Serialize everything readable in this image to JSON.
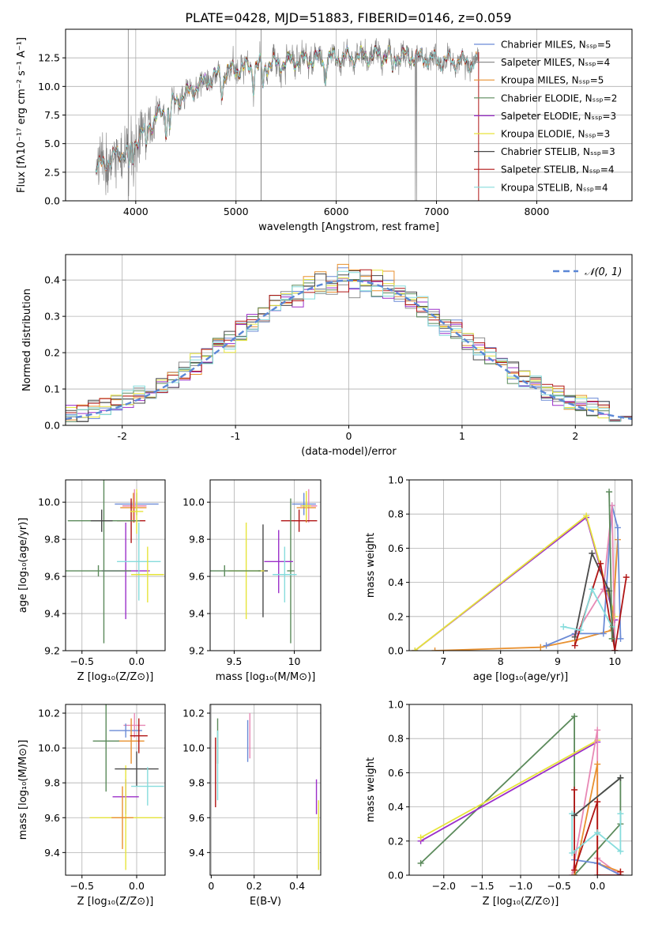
{
  "page_title": "PLATE=0428, MJD=51883, FIBERID=0146, z=0.059",
  "model_colors": [
    "#6b8bd6",
    "#8e8e8e",
    "#e8902f",
    "#5b8a5b",
    "#9b2fc9",
    "#e6e43a",
    "#4a4a4a",
    "#b01515",
    "#86dcdc"
  ],
  "chart_data": [
    {
      "id": "spectrum",
      "type": "line",
      "title": "PLATE=0428, MJD=51883, FIBERID=0146, z=0.059",
      "xlabel": "wavelength [Angstrom, rest frame]",
      "ylabel": "Flux [fλ10⁻¹⁷ erg cm⁻² s⁻¹ A⁻¹]",
      "xlim": [
        3300,
        8950
      ],
      "ylim": [
        0,
        15
      ],
      "xticks": [
        4000,
        5000,
        6000,
        7000,
        8000
      ],
      "yticks": [
        0.0,
        2.5,
        5.0,
        7.5,
        10.0,
        12.5
      ],
      "grid": true,
      "legend_position": "upper-right",
      "continuum": {
        "x": [
          3600,
          3700,
          3800,
          3900,
          4000,
          4100,
          4200,
          4300,
          4400,
          4500,
          4600,
          4700,
          4800,
          4900,
          5000,
          5200,
          5400,
          5600,
          5800,
          6000,
          6200,
          6400,
          6600,
          6800,
          7000,
          7200,
          7400
        ],
        "y": [
          2.8,
          3.3,
          4.0,
          4.3,
          5.3,
          6.3,
          7.2,
          8.0,
          8.7,
          9.3,
          9.9,
          10.4,
          10.9,
          11.3,
          11.5,
          11.8,
          12.0,
          12.2,
          12.4,
          12.5,
          12.6,
          12.7,
          12.7,
          12.6,
          12.3,
          12.2,
          12.1
        ]
      },
      "series": [
        {
          "name": "Chabrier MILES, Nₛₛₚ=5",
          "range": [
            3600,
            7400
          ]
        },
        {
          "name": "Salpeter MILES, Nₛₛₚ=4",
          "range": [
            3600,
            7400
          ]
        },
        {
          "name": "Kroupa MILES, Nₛₛₚ=5",
          "range": [
            3600,
            7400
          ]
        },
        {
          "name": "Chabrier ELODIE, Nₛₛₚ=2",
          "range": [
            3900,
            6800
          ]
        },
        {
          "name": "Salpeter ELODIE, Nₛₛₚ=3",
          "range": [
            3900,
            6800
          ]
        },
        {
          "name": "Kroupa ELODIE, Nₛₛₚ=3",
          "range": [
            3900,
            6800
          ]
        },
        {
          "name": "Chabrier STELIB, Nₛₛₚ=3",
          "range": [
            3600,
            7400
          ]
        },
        {
          "name": "Salpeter STELIB, Nₛₛₚ=4",
          "range": [
            3600,
            7400
          ]
        },
        {
          "name": "Kroupa STELIB, Nₛₛₚ=4",
          "range": [
            3600,
            7400
          ]
        }
      ]
    },
    {
      "id": "residuals",
      "type": "histogram",
      "xlabel": "(data-model)/error",
      "ylabel": "Normed distribution",
      "xlim": [
        -2.5,
        2.5
      ],
      "ylim": [
        0,
        0.47
      ],
      "xticks": [
        -2,
        -1,
        0,
        1,
        2
      ],
      "yticks": [
        0.0,
        0.1,
        0.2,
        0.3,
        0.4
      ],
      "grid": true,
      "legend_position": "upper-right",
      "legend": "𝒩(0, 1)",
      "reference_curve": {
        "mean": 0,
        "sigma": 1
      },
      "bin_width": 0.1
    },
    {
      "id": "age_vs_Z",
      "type": "errorbar",
      "xlabel": "Z [log₁₀(Z/Z⊙)]",
      "ylabel": "age  [log₁₀(age/yr)]",
      "xlim": [
        -0.65,
        0.26
      ],
      "ylim": [
        9.2,
        10.12
      ],
      "xticks": [
        -0.5,
        0.0
      ],
      "xticklabels": [
        "−0.5",
        "0.0"
      ],
      "yticks": [
        9.2,
        9.4,
        9.6,
        9.8,
        10.0
      ],
      "grid": true,
      "points": [
        {
          "x": 0.0,
          "y": 9.99,
          "xerr": 0.2,
          "yerr": 0.06
        },
        {
          "x": -0.02,
          "y": 9.98,
          "xerr": 0.11,
          "yerr": 0.09
        },
        {
          "x": -0.03,
          "y": 9.97,
          "xerr": 0.12,
          "yerr": 0.08
        },
        {
          "x": -0.05,
          "y": 9.9,
          "xerr": 0.13,
          "yerr": 0.12
        },
        {
          "x": -0.3,
          "y": 9.9,
          "xerr": 0.33,
          "yerr": 0.66
        },
        {
          "x": -0.32,
          "y": 9.9,
          "xerr": 0.1,
          "yerr": 0.06
        },
        {
          "x": -0.1,
          "y": 9.63,
          "xerr": 0.22,
          "yerr": 0.26
        },
        {
          "x": 0.02,
          "y": 9.68,
          "xerr": 0.2,
          "yerr": 0.21
        },
        {
          "x": 0.1,
          "y": 9.61,
          "xerr": 0.15,
          "yerr": 0.15
        },
        {
          "x": -0.35,
          "y": 9.63,
          "xerr": 0.3,
          "yerr": 0.03
        },
        {
          "x": 0.0,
          "y": 9.95,
          "xerr": 0.06,
          "yerr": 0.12
        }
      ]
    },
    {
      "id": "age_vs_mass",
      "type": "errorbar",
      "xlabel": "mass [log₁₀(M/M⊙)]",
      "ylabel": "",
      "xlim": [
        9.3,
        10.22
      ],
      "ylim": [
        9.2,
        10.12
      ],
      "xticks": [
        9.5,
        10.0
      ],
      "yticks": [
        9.2,
        9.4,
        9.6,
        9.8,
        10.0
      ],
      "grid": true,
      "points": [
        {
          "x": 10.08,
          "y": 9.99,
          "xerr": 0.1,
          "yerr": 0.06
        },
        {
          "x": 10.12,
          "y": 9.98,
          "xerr": 0.07,
          "yerr": 0.09
        },
        {
          "x": 10.1,
          "y": 9.97,
          "xerr": 0.08,
          "yerr": 0.08
        },
        {
          "x": 10.04,
          "y": 9.9,
          "xerr": 0.15,
          "yerr": 0.06
        },
        {
          "x": 9.97,
          "y": 9.63,
          "xerr": 0.03,
          "yerr": 0.39
        },
        {
          "x": 9.74,
          "y": 9.63,
          "xerr": 0.04,
          "yerr": 0.25
        },
        {
          "x": 9.87,
          "y": 9.68,
          "xerr": 0.12,
          "yerr": 0.17
        },
        {
          "x": 9.92,
          "y": 9.61,
          "xerr": 0.1,
          "yerr": 0.15
        },
        {
          "x": 9.6,
          "y": 9.63,
          "xerr": 0.15,
          "yerr": 0.26
        },
        {
          "x": 9.42,
          "y": 9.63,
          "xerr": 0.3,
          "yerr": 0.03
        },
        {
          "x": 10.1,
          "y": 9.98,
          "xerr": 0.04,
          "yerr": 0.08
        }
      ]
    },
    {
      "id": "weight_vs_age",
      "type": "line",
      "xlabel": "age  [log₁₀(age/yr)]",
      "ylabel": "mass weight",
      "xlim": [
        6.4,
        10.3
      ],
      "ylim": [
        0,
        1
      ],
      "xticks": [
        7,
        8,
        9,
        10
      ],
      "yticks": [
        0.0,
        0.2,
        0.4,
        0.6,
        0.8,
        1.0
      ],
      "grid": true,
      "series": [
        {
          "x": [
            6.5,
            9.5,
            10.0
          ],
          "y": [
            0.0,
            0.78,
            0.18
          ],
          "color": "#9b2fc9"
        },
        {
          "x": [
            6.5,
            9.5,
            10.0
          ],
          "y": [
            0.0,
            0.79,
            0.2
          ],
          "color": "#e6e43a"
        },
        {
          "x": [
            6.85,
            8.7,
            9.3,
            9.95,
            10.05
          ],
          "y": [
            0.0,
            0.02,
            0.06,
            0.12,
            0.65
          ],
          "color": "#e8902f"
        },
        {
          "x": [
            8.8,
            9.3,
            9.8,
            9.95,
            10.05,
            10.1
          ],
          "y": [
            0.03,
            0.1,
            0.1,
            0.85,
            0.72,
            0.07
          ],
          "color": "#6b8bd6"
        },
        {
          "x": [
            9.3,
            9.8,
            9.95,
            10.0
          ],
          "y": [
            0.09,
            0.36,
            0.85,
            0.0
          ],
          "color": "#e889b5"
        },
        {
          "x": [
            9.3,
            9.6,
            9.9,
            10.0
          ],
          "y": [
            0.08,
            0.57,
            0.35,
            0.0
          ],
          "color": "#4a4a4a"
        },
        {
          "x": [
            9.3,
            9.75,
            10.0,
            10.2
          ],
          "y": [
            0.03,
            0.51,
            0.0,
            0.43
          ],
          "color": "#b01515"
        },
        {
          "x": [
            9.1,
            9.4,
            9.6,
            9.95
          ],
          "y": [
            0.14,
            0.12,
            0.36,
            0.14
          ],
          "color": "#86dcdc"
        },
        {
          "x": [
            9.9,
            9.95
          ],
          "y": [
            0.93,
            0.07
          ],
          "color": "#5b8a5b"
        }
      ]
    },
    {
      "id": "mass_vs_Z",
      "type": "errorbar",
      "xlabel": "Z [log₁₀(Z/Z⊙)]",
      "ylabel": "mass [log₁₀(M/M⊙)]",
      "xlim": [
        -0.65,
        0.26
      ],
      "ylim": [
        9.27,
        10.25
      ],
      "xticks": [
        -0.5,
        0.0
      ],
      "xticklabels": [
        "−0.5",
        "0.0"
      ],
      "yticks": [
        9.4,
        9.6,
        9.8,
        10.0,
        10.2
      ],
      "grid": true,
      "points": [
        {
          "x": -0.02,
          "y": 10.13,
          "xerr": 0.1,
          "yerr": 0.07
        },
        {
          "x": -0.1,
          "y": 10.1,
          "xerr": 0.15,
          "yerr": 0.04
        },
        {
          "x": -0.05,
          "y": 10.04,
          "xerr": 0.12,
          "yerr": 0.13
        },
        {
          "x": -0.28,
          "y": 10.04,
          "xerr": 0.12,
          "yerr": 0.29
        },
        {
          "x": -0.1,
          "y": 9.72,
          "xerr": 0.12,
          "yerr": 0.1
        },
        {
          "x": -0.1,
          "y": 9.6,
          "xerr": 0.33,
          "yerr": 0.3
        },
        {
          "x": -0.13,
          "y": 9.6,
          "xerr": 0.1,
          "yerr": 0.18
        },
        {
          "x": 0.0,
          "y": 9.88,
          "xerr": 0.2,
          "yerr": 0.1
        },
        {
          "x": 0.1,
          "y": 9.78,
          "xerr": 0.15,
          "yerr": 0.11
        },
        {
          "x": 0.02,
          "y": 10.07,
          "xerr": 0.08,
          "yerr": 0.1
        }
      ]
    },
    {
      "id": "mass_vs_EBV",
      "type": "errorbar",
      "xlabel": "E(B-V)",
      "ylabel": "",
      "xlim": [
        -0.005,
        0.51
      ],
      "ylim": [
        9.27,
        10.25
      ],
      "xticks": [
        0.0,
        0.2,
        0.4
      ],
      "yticks": [
        9.4,
        9.6,
        9.8,
        10.0,
        10.2
      ],
      "grid": true,
      "points": [
        {
          "x": 0.03,
          "y": 10.04,
          "xerr": 0,
          "yerr": 0.13
        },
        {
          "x": 0.03,
          "y": 9.9,
          "xerr": 0,
          "yerr": 0.2
        },
        {
          "x": 0.02,
          "y": 9.86,
          "xerr": 0,
          "yerr": 0.2
        },
        {
          "x": 0.17,
          "y": 10.04,
          "xerr": 0,
          "yerr": 0.12
        },
        {
          "x": 0.18,
          "y": 10.07,
          "xerr": 0,
          "yerr": 0.13
        },
        {
          "x": 0.49,
          "y": 9.72,
          "xerr": 0,
          "yerr": 0.1
        },
        {
          "x": 0.5,
          "y": 9.5,
          "xerr": 0,
          "yerr": 0.2
        }
      ]
    },
    {
      "id": "weight_vs_Z",
      "type": "line",
      "xlabel": "Z [log₁₀(Z/Z⊙)]",
      "ylabel": "mass weight",
      "xlim": [
        -2.45,
        0.45
      ],
      "ylim": [
        0,
        1
      ],
      "xticks": [
        -2.0,
        -1.5,
        -1.0,
        -0.5,
        0.0
      ],
      "xticklabels": [
        "−2.0",
        "−1.5",
        "−1.0",
        "−0.5",
        "0.0"
      ],
      "yticks": [
        0.0,
        0.2,
        0.4,
        0.6,
        0.8,
        1.0
      ],
      "grid": true,
      "series": [
        {
          "x": [
            -2.3,
            -0.3,
            -0.3,
            0.3,
            0.3,
            -0.3
          ],
          "y": [
            0.07,
            0.93,
            0.35,
            0.57,
            0.3,
            0.0
          ],
          "color": "#5b8a5b"
        },
        {
          "x": [
            -2.3,
            0.0
          ],
          "y": [
            0.2,
            0.78
          ],
          "color": "#9b2fc9"
        },
        {
          "x": [
            -2.3,
            0.0
          ],
          "y": [
            0.22,
            0.79
          ],
          "color": "#e6e43a"
        },
        {
          "x": [
            -0.33,
            0.0,
            0.0,
            0.3,
            0.3
          ],
          "y": [
            0.0,
            0.85,
            0.1,
            0.0,
            0.02
          ],
          "color": "#e889b5"
        },
        {
          "x": [
            -0.3,
            0.0,
            0.0,
            0.3,
            0.3
          ],
          "y": [
            0.0,
            0.65,
            0.07,
            0.02,
            0.0
          ],
          "color": "#e8902f"
        },
        {
          "x": [
            -0.3,
            0.0,
            0.0,
            0.3
          ],
          "y": [
            0.09,
            0.07,
            0.07,
            0.0
          ],
          "color": "#6b8bd6"
        },
        {
          "x": [
            -0.3,
            -0.3,
            0.0,
            0.0,
            0.3,
            0.3
          ],
          "y": [
            0.5,
            0.03,
            0.43,
            0.0,
            0.0,
            0.02
          ],
          "color": "#b01515"
        },
        {
          "x": [
            -0.33,
            -0.33,
            0.0,
            0.3,
            0.3
          ],
          "y": [
            0.36,
            0.13,
            0.25,
            0.14,
            0.36
          ],
          "color": "#86dcdc"
        },
        {
          "x": [
            -0.3,
            0.3
          ],
          "y": [
            0.35,
            0.57
          ],
          "color": "#4a4a4a"
        }
      ]
    }
  ]
}
